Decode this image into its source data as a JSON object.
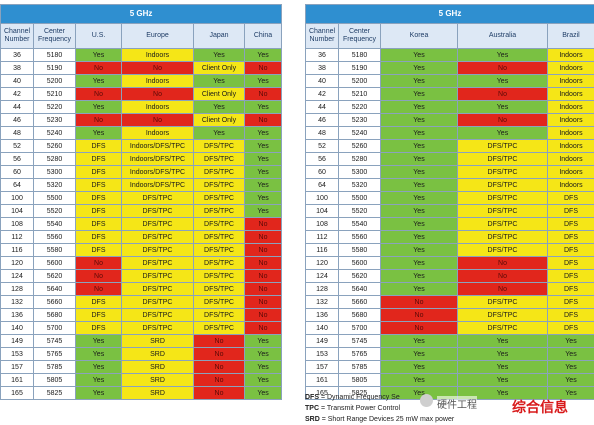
{
  "left_table": {
    "band_label": "5 GHz",
    "headers": {
      "channel": [
        "Channel",
        "Number"
      ],
      "frequency": [
        "Center",
        "Frequency"
      ],
      "regions": [
        "U.S.",
        "Europe",
        "Japan",
        "China"
      ]
    },
    "rows": [
      {
        "ch": "36",
        "freq": "5180",
        "cells": [
          {
            "t": "Yes",
            "c": "g"
          },
          {
            "t": "Indoors",
            "c": "y"
          },
          {
            "t": "Yes",
            "c": "g"
          },
          {
            "t": "Yes",
            "c": "g"
          }
        ]
      },
      {
        "ch": "38",
        "freq": "5190",
        "cells": [
          {
            "t": "No",
            "c": "r"
          },
          {
            "t": "No",
            "c": "r"
          },
          {
            "t": "Client Only",
            "c": "y"
          },
          {
            "t": "No",
            "c": "r"
          }
        ]
      },
      {
        "ch": "40",
        "freq": "5200",
        "cells": [
          {
            "t": "Yes",
            "c": "g"
          },
          {
            "t": "Indoors",
            "c": "y"
          },
          {
            "t": "Yes",
            "c": "g"
          },
          {
            "t": "Yes",
            "c": "g"
          }
        ]
      },
      {
        "ch": "42",
        "freq": "5210",
        "cells": [
          {
            "t": "No",
            "c": "r"
          },
          {
            "t": "No",
            "c": "r"
          },
          {
            "t": "Client Only",
            "c": "y"
          },
          {
            "t": "No",
            "c": "r"
          }
        ]
      },
      {
        "ch": "44",
        "freq": "5220",
        "cells": [
          {
            "t": "Yes",
            "c": "g"
          },
          {
            "t": "Indoors",
            "c": "y"
          },
          {
            "t": "Yes",
            "c": "g"
          },
          {
            "t": "Yes",
            "c": "g"
          }
        ]
      },
      {
        "ch": "46",
        "freq": "5230",
        "cells": [
          {
            "t": "No",
            "c": "r"
          },
          {
            "t": "No",
            "c": "r"
          },
          {
            "t": "Client Only",
            "c": "y"
          },
          {
            "t": "No",
            "c": "r"
          }
        ]
      },
      {
        "ch": "48",
        "freq": "5240",
        "cells": [
          {
            "t": "Yes",
            "c": "g"
          },
          {
            "t": "Indoors",
            "c": "y"
          },
          {
            "t": "Yes",
            "c": "g"
          },
          {
            "t": "Yes",
            "c": "g"
          }
        ]
      },
      {
        "ch": "52",
        "freq": "5260",
        "cells": [
          {
            "t": "DFS",
            "c": "y"
          },
          {
            "t": "Indoors/DFS/TPC",
            "c": "y"
          },
          {
            "t": "DFS/TPC",
            "c": "y"
          },
          {
            "t": "Yes",
            "c": "g"
          }
        ]
      },
      {
        "ch": "56",
        "freq": "5280",
        "cells": [
          {
            "t": "DFS",
            "c": "y"
          },
          {
            "t": "Indoors/DFS/TPC",
            "c": "y"
          },
          {
            "t": "DFS/TPC",
            "c": "y"
          },
          {
            "t": "Yes",
            "c": "g"
          }
        ]
      },
      {
        "ch": "60",
        "freq": "5300",
        "cells": [
          {
            "t": "DFS",
            "c": "y"
          },
          {
            "t": "Indoors/DFS/TPC",
            "c": "y"
          },
          {
            "t": "DFS/TPC",
            "c": "y"
          },
          {
            "t": "Yes",
            "c": "g"
          }
        ]
      },
      {
        "ch": "64",
        "freq": "5320",
        "cells": [
          {
            "t": "DFS",
            "c": "y"
          },
          {
            "t": "Indoors/DFS/TPC",
            "c": "y"
          },
          {
            "t": "DFS/TPC",
            "c": "y"
          },
          {
            "t": "Yes",
            "c": "g"
          }
        ]
      },
      {
        "ch": "100",
        "freq": "5500",
        "cells": [
          {
            "t": "DFS",
            "c": "y"
          },
          {
            "t": "DFS/TPC",
            "c": "y"
          },
          {
            "t": "DFS/TPC",
            "c": "y"
          },
          {
            "t": "Yes",
            "c": "g"
          }
        ]
      },
      {
        "ch": "104",
        "freq": "5520",
        "cells": [
          {
            "t": "DFS",
            "c": "y"
          },
          {
            "t": "DFS/TPC",
            "c": "y"
          },
          {
            "t": "DFS/TPC",
            "c": "y"
          },
          {
            "t": "Yes",
            "c": "g"
          }
        ]
      },
      {
        "ch": "108",
        "freq": "5540",
        "cells": [
          {
            "t": "DFS",
            "c": "y"
          },
          {
            "t": "DFS/TPC",
            "c": "y"
          },
          {
            "t": "DFS/TPC",
            "c": "y"
          },
          {
            "t": "No",
            "c": "r"
          }
        ]
      },
      {
        "ch": "112",
        "freq": "5560",
        "cells": [
          {
            "t": "DFS",
            "c": "y"
          },
          {
            "t": "DFS/TPC",
            "c": "y"
          },
          {
            "t": "DFS/TPC",
            "c": "y"
          },
          {
            "t": "No",
            "c": "r"
          }
        ]
      },
      {
        "ch": "116",
        "freq": "5580",
        "cells": [
          {
            "t": "DFS",
            "c": "y"
          },
          {
            "t": "DFS/TPC",
            "c": "y"
          },
          {
            "t": "DFS/TPC",
            "c": "y"
          },
          {
            "t": "No",
            "c": "r"
          }
        ]
      },
      {
        "ch": "120",
        "freq": "5600",
        "cells": [
          {
            "t": "No",
            "c": "r"
          },
          {
            "t": "DFS/TPC",
            "c": "y"
          },
          {
            "t": "DFS/TPC",
            "c": "y"
          },
          {
            "t": "No",
            "c": "r"
          }
        ]
      },
      {
        "ch": "124",
        "freq": "5620",
        "cells": [
          {
            "t": "No",
            "c": "r"
          },
          {
            "t": "DFS/TPC",
            "c": "y"
          },
          {
            "t": "DFS/TPC",
            "c": "y"
          },
          {
            "t": "No",
            "c": "r"
          }
        ]
      },
      {
        "ch": "128",
        "freq": "5640",
        "cells": [
          {
            "t": "No",
            "c": "r"
          },
          {
            "t": "DFS/TPC",
            "c": "y"
          },
          {
            "t": "DFS/TPC",
            "c": "y"
          },
          {
            "t": "No",
            "c": "r"
          }
        ]
      },
      {
        "ch": "132",
        "freq": "5660",
        "cells": [
          {
            "t": "DFS",
            "c": "y"
          },
          {
            "t": "DFS/TPC",
            "c": "y"
          },
          {
            "t": "DFS/TPC",
            "c": "y"
          },
          {
            "t": "No",
            "c": "r"
          }
        ]
      },
      {
        "ch": "136",
        "freq": "5680",
        "cells": [
          {
            "t": "DFS",
            "c": "y"
          },
          {
            "t": "DFS/TPC",
            "c": "y"
          },
          {
            "t": "DFS/TPC",
            "c": "y"
          },
          {
            "t": "No",
            "c": "r"
          }
        ]
      },
      {
        "ch": "140",
        "freq": "5700",
        "cells": [
          {
            "t": "DFS",
            "c": "y"
          },
          {
            "t": "DFS/TPC",
            "c": "y"
          },
          {
            "t": "DFS/TPC",
            "c": "y"
          },
          {
            "t": "No",
            "c": "r"
          }
        ]
      },
      {
        "ch": "149",
        "freq": "5745",
        "cells": [
          {
            "t": "Yes",
            "c": "g"
          },
          {
            "t": "SRD",
            "c": "y"
          },
          {
            "t": "No",
            "c": "r"
          },
          {
            "t": "Yes",
            "c": "g"
          }
        ]
      },
      {
        "ch": "153",
        "freq": "5765",
        "cells": [
          {
            "t": "Yes",
            "c": "g"
          },
          {
            "t": "SRD",
            "c": "y"
          },
          {
            "t": "No",
            "c": "r"
          },
          {
            "t": "Yes",
            "c": "g"
          }
        ]
      },
      {
        "ch": "157",
        "freq": "5785",
        "cells": [
          {
            "t": "Yes",
            "c": "g"
          },
          {
            "t": "SRD",
            "c": "y"
          },
          {
            "t": "No",
            "c": "r"
          },
          {
            "t": "Yes",
            "c": "g"
          }
        ]
      },
      {
        "ch": "161",
        "freq": "5805",
        "cells": [
          {
            "t": "Yes",
            "c": "g"
          },
          {
            "t": "SRD",
            "c": "y"
          },
          {
            "t": "No",
            "c": "r"
          },
          {
            "t": "Yes",
            "c": "g"
          }
        ]
      },
      {
        "ch": "165",
        "freq": "5825",
        "cells": [
          {
            "t": "Yes",
            "c": "g"
          },
          {
            "t": "SRD",
            "c": "y"
          },
          {
            "t": "No",
            "c": "r"
          },
          {
            "t": "Yes",
            "c": "g"
          }
        ]
      }
    ]
  },
  "right_table": {
    "band_label": "5 GHz",
    "headers": {
      "channel": [
        "Channel",
        "Number"
      ],
      "frequency": [
        "Center",
        "Frequency"
      ],
      "regions": [
        "Korea",
        "Australia",
        "Brazil"
      ]
    },
    "rows": [
      {
        "ch": "36",
        "freq": "5180",
        "cells": [
          {
            "t": "Yes",
            "c": "g"
          },
          {
            "t": "Yes",
            "c": "g"
          },
          {
            "t": "Indoors",
            "c": "y"
          }
        ]
      },
      {
        "ch": "38",
        "freq": "5190",
        "cells": [
          {
            "t": "Yes",
            "c": "g"
          },
          {
            "t": "No",
            "c": "r"
          },
          {
            "t": "Indoors",
            "c": "y"
          }
        ]
      },
      {
        "ch": "40",
        "freq": "5200",
        "cells": [
          {
            "t": "Yes",
            "c": "g"
          },
          {
            "t": "Yes",
            "c": "g"
          },
          {
            "t": "Indoors",
            "c": "y"
          }
        ]
      },
      {
        "ch": "42",
        "freq": "5210",
        "cells": [
          {
            "t": "Yes",
            "c": "g"
          },
          {
            "t": "No",
            "c": "r"
          },
          {
            "t": "Indoors",
            "c": "y"
          }
        ]
      },
      {
        "ch": "44",
        "freq": "5220",
        "cells": [
          {
            "t": "Yes",
            "c": "g"
          },
          {
            "t": "Yes",
            "c": "g"
          },
          {
            "t": "Indoors",
            "c": "y"
          }
        ]
      },
      {
        "ch": "46",
        "freq": "5230",
        "cells": [
          {
            "t": "Yes",
            "c": "g"
          },
          {
            "t": "No",
            "c": "r"
          },
          {
            "t": "Indoors",
            "c": "y"
          }
        ]
      },
      {
        "ch": "48",
        "freq": "5240",
        "cells": [
          {
            "t": "Yes",
            "c": "g"
          },
          {
            "t": "Yes",
            "c": "g"
          },
          {
            "t": "Indoors",
            "c": "y"
          }
        ]
      },
      {
        "ch": "52",
        "freq": "5260",
        "cells": [
          {
            "t": "Yes",
            "c": "g"
          },
          {
            "t": "DFS/TPC",
            "c": "y"
          },
          {
            "t": "Indoors",
            "c": "y"
          }
        ]
      },
      {
        "ch": "56",
        "freq": "5280",
        "cells": [
          {
            "t": "Yes",
            "c": "g"
          },
          {
            "t": "DFS/TPC",
            "c": "y"
          },
          {
            "t": "Indoors",
            "c": "y"
          }
        ]
      },
      {
        "ch": "60",
        "freq": "5300",
        "cells": [
          {
            "t": "Yes",
            "c": "g"
          },
          {
            "t": "DFS/TPC",
            "c": "y"
          },
          {
            "t": "Indoors",
            "c": "y"
          }
        ]
      },
      {
        "ch": "64",
        "freq": "5320",
        "cells": [
          {
            "t": "Yes",
            "c": "g"
          },
          {
            "t": "DFS/TPC",
            "c": "y"
          },
          {
            "t": "Indoors",
            "c": "y"
          }
        ]
      },
      {
        "ch": "100",
        "freq": "5500",
        "cells": [
          {
            "t": "Yes",
            "c": "g"
          },
          {
            "t": "DFS/TPC",
            "c": "y"
          },
          {
            "t": "DFS",
            "c": "y"
          }
        ]
      },
      {
        "ch": "104",
        "freq": "5520",
        "cells": [
          {
            "t": "Yes",
            "c": "g"
          },
          {
            "t": "DFS/TPC",
            "c": "y"
          },
          {
            "t": "DFS",
            "c": "y"
          }
        ]
      },
      {
        "ch": "108",
        "freq": "5540",
        "cells": [
          {
            "t": "Yes",
            "c": "g"
          },
          {
            "t": "DFS/TPC",
            "c": "y"
          },
          {
            "t": "DFS",
            "c": "y"
          }
        ]
      },
      {
        "ch": "112",
        "freq": "5560",
        "cells": [
          {
            "t": "Yes",
            "c": "g"
          },
          {
            "t": "DFS/TPC",
            "c": "y"
          },
          {
            "t": "DFS",
            "c": "y"
          }
        ]
      },
      {
        "ch": "116",
        "freq": "5580",
        "cells": [
          {
            "t": "Yes",
            "c": "g"
          },
          {
            "t": "DFS/TPC",
            "c": "y"
          },
          {
            "t": "DFS",
            "c": "y"
          }
        ]
      },
      {
        "ch": "120",
        "freq": "5600",
        "cells": [
          {
            "t": "Yes",
            "c": "g"
          },
          {
            "t": "No",
            "c": "r"
          },
          {
            "t": "DFS",
            "c": "y"
          }
        ]
      },
      {
        "ch": "124",
        "freq": "5620",
        "cells": [
          {
            "t": "Yes",
            "c": "g"
          },
          {
            "t": "No",
            "c": "r"
          },
          {
            "t": "DFS",
            "c": "y"
          }
        ]
      },
      {
        "ch": "128",
        "freq": "5640",
        "cells": [
          {
            "t": "Yes",
            "c": "g"
          },
          {
            "t": "No",
            "c": "r"
          },
          {
            "t": "DFS",
            "c": "y"
          }
        ]
      },
      {
        "ch": "132",
        "freq": "5660",
        "cells": [
          {
            "t": "No",
            "c": "r"
          },
          {
            "t": "DFS/TPC",
            "c": "y"
          },
          {
            "t": "DFS",
            "c": "y"
          }
        ]
      },
      {
        "ch": "136",
        "freq": "5680",
        "cells": [
          {
            "t": "No",
            "c": "r"
          },
          {
            "t": "DFS/TPC",
            "c": "y"
          },
          {
            "t": "DFS",
            "c": "y"
          }
        ]
      },
      {
        "ch": "140",
        "freq": "5700",
        "cells": [
          {
            "t": "No",
            "c": "r"
          },
          {
            "t": "DFS/TPC",
            "c": "y"
          },
          {
            "t": "DFS",
            "c": "y"
          }
        ]
      },
      {
        "ch": "149",
        "freq": "5745",
        "cells": [
          {
            "t": "Yes",
            "c": "g"
          },
          {
            "t": "Yes",
            "c": "g"
          },
          {
            "t": "Yes",
            "c": "g"
          }
        ]
      },
      {
        "ch": "153",
        "freq": "5765",
        "cells": [
          {
            "t": "Yes",
            "c": "g"
          },
          {
            "t": "Yes",
            "c": "g"
          },
          {
            "t": "Yes",
            "c": "g"
          }
        ]
      },
      {
        "ch": "157",
        "freq": "5785",
        "cells": [
          {
            "t": "Yes",
            "c": "g"
          },
          {
            "t": "Yes",
            "c": "g"
          },
          {
            "t": "Yes",
            "c": "g"
          }
        ]
      },
      {
        "ch": "161",
        "freq": "5805",
        "cells": [
          {
            "t": "Yes",
            "c": "g"
          },
          {
            "t": "Yes",
            "c": "g"
          },
          {
            "t": "Yes",
            "c": "g"
          }
        ]
      },
      {
        "ch": "165",
        "freq": "5825",
        "cells": [
          {
            "t": "Yes",
            "c": "g"
          },
          {
            "t": "Yes",
            "c": "g"
          },
          {
            "t": "Yes",
            "c": "g"
          }
        ]
      }
    ]
  },
  "legend": {
    "dfs": {
      "term": "DFS",
      "text": " = Dynamic Frequency Se"
    },
    "tpc": {
      "term": "TPC",
      "text": " = Transmit Power Control"
    },
    "srd": {
      "term": "SRD",
      "text": " = Short Range Devices 25 mW max power"
    }
  },
  "watermark": {
    "text": "硬件工程",
    "stamp": "综合信息"
  },
  "colors": {
    "yes": "#7ac142",
    "conditional": "#f5e617",
    "no": "#e1261c",
    "band_header": "#2f8fd0"
  }
}
